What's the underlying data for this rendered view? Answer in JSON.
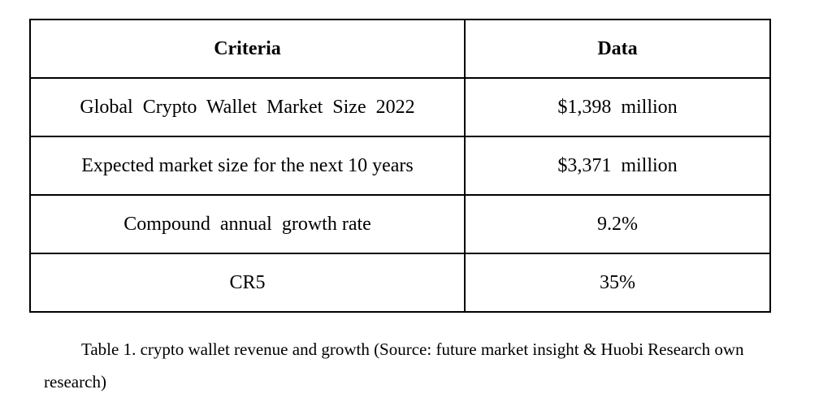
{
  "table": {
    "headers": [
      "Criteria",
      "Data"
    ],
    "rows": [
      [
        "Global  Crypto  Wallet  Market  Size  2022",
        "$1,398  million"
      ],
      [
        "Expected market size for the next 10 years",
        "$3,371  million"
      ],
      [
        "Compound  annual  growth rate",
        "9.2%"
      ],
      [
        "CR5",
        "35%"
      ]
    ]
  },
  "caption": "Table 1. crypto wallet revenue and growth (Source: future market insight & Huobi Research own research)"
}
